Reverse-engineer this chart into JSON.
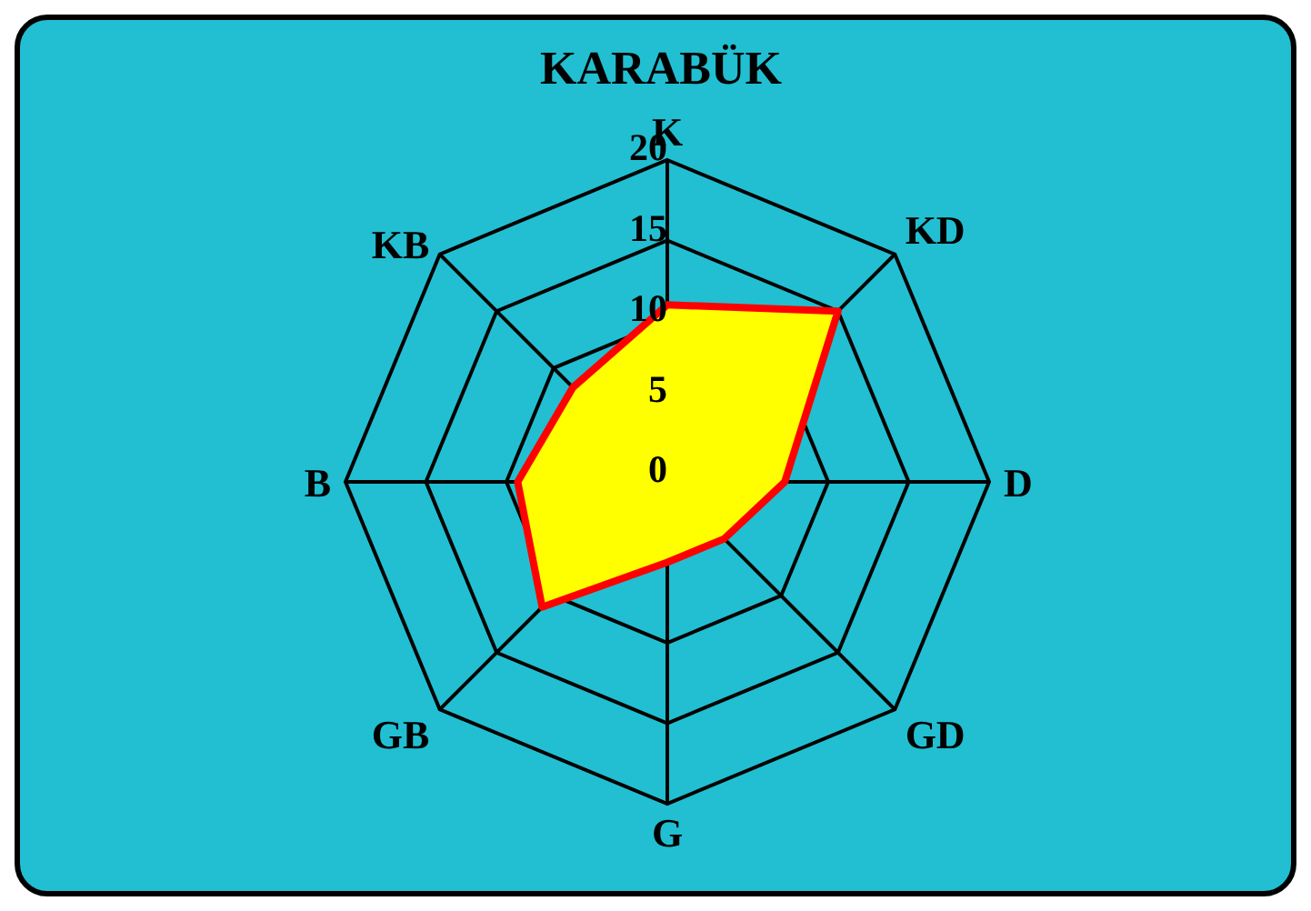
{
  "chart_data": {
    "type": "radar",
    "title": "KARABÜK",
    "categories": [
      "K",
      "KD",
      "D",
      "GD",
      "G",
      "GB",
      "B",
      "KB"
    ],
    "series": [
      {
        "color": "#ffff00",
        "values": [
          11,
          15,
          7.3,
          5,
          5,
          11,
          9.3,
          8.3
        ]
      }
    ],
    "ylim": [
      0,
      20
    ],
    "yticks": [
      0,
      5,
      10,
      15,
      20
    ],
    "grid": true,
    "legend": false
  }
}
